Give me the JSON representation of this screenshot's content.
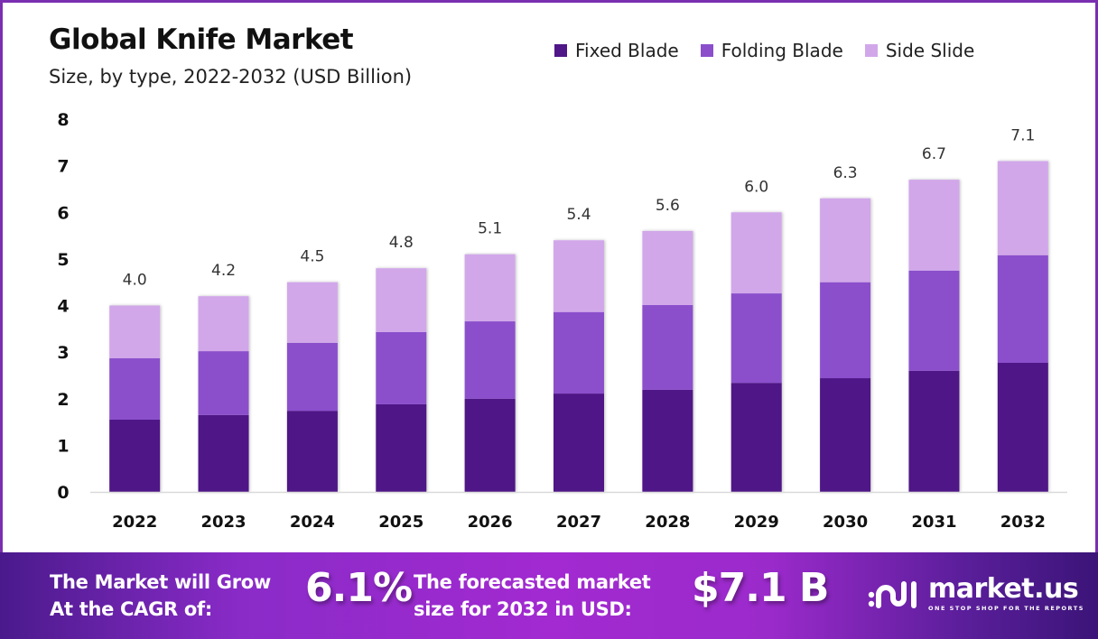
{
  "header": {
    "title": "Global Knife Market",
    "subtitle": "Size, by type, 2022-2032 (USD Billion)"
  },
  "colors": {
    "fixed_blade": "#4f1787",
    "folding_blade": "#8b4fcc",
    "side_slide": "#d1a7ea",
    "frame": "#7a2fb0"
  },
  "chart_data": {
    "type": "bar",
    "stacked": true,
    "title": "Global Knife Market",
    "subtitle": "Size, by type, 2022-2032 (USD Billion)",
    "xlabel": "",
    "ylabel": "",
    "ylim": [
      0,
      8
    ],
    "yticks": [
      0,
      1,
      2,
      3,
      4,
      5,
      6,
      7,
      8
    ],
    "grid": false,
    "legend_position": "top-right",
    "categories": [
      "2022",
      "2023",
      "2024",
      "2025",
      "2026",
      "2027",
      "2028",
      "2029",
      "2030",
      "2031",
      "2032"
    ],
    "series": [
      {
        "name": "Fixed Blade",
        "color": "#4f1787",
        "values": [
          1.55,
          1.65,
          1.74,
          1.88,
          2.0,
          2.11,
          2.19,
          2.34,
          2.44,
          2.6,
          2.77
        ]
      },
      {
        "name": "Folding Blade",
        "color": "#8b4fcc",
        "values": [
          1.32,
          1.37,
          1.46,
          1.55,
          1.66,
          1.75,
          1.82,
          1.92,
          2.06,
          2.15,
          2.31
        ]
      },
      {
        "name": "Side Slide",
        "color": "#d1a7ea",
        "values": [
          1.13,
          1.18,
          1.3,
          1.37,
          1.44,
          1.54,
          1.59,
          1.74,
          1.8,
          1.95,
          2.02
        ]
      }
    ],
    "totals": [
      4.0,
      4.2,
      4.5,
      4.8,
      5.1,
      5.4,
      5.6,
      6.0,
      6.3,
      6.7,
      7.1
    ],
    "total_labels": [
      "4.0",
      "4.2",
      "4.5",
      "4.8",
      "5.1",
      "5.4",
      "5.6",
      "6.0",
      "6.3",
      "6.7",
      "7.1"
    ]
  },
  "banner": {
    "cagr_line1": "The Market will Grow",
    "cagr_line2": "At the CAGR of:",
    "cagr_value": "6.1%",
    "forecast_line1": "The forecasted market",
    "forecast_line2": "size for 2032 in USD:",
    "forecast_value": "$7.1 B",
    "logo_name": "market.us",
    "logo_tagline": "ONE STOP SHOP FOR THE REPORTS"
  }
}
